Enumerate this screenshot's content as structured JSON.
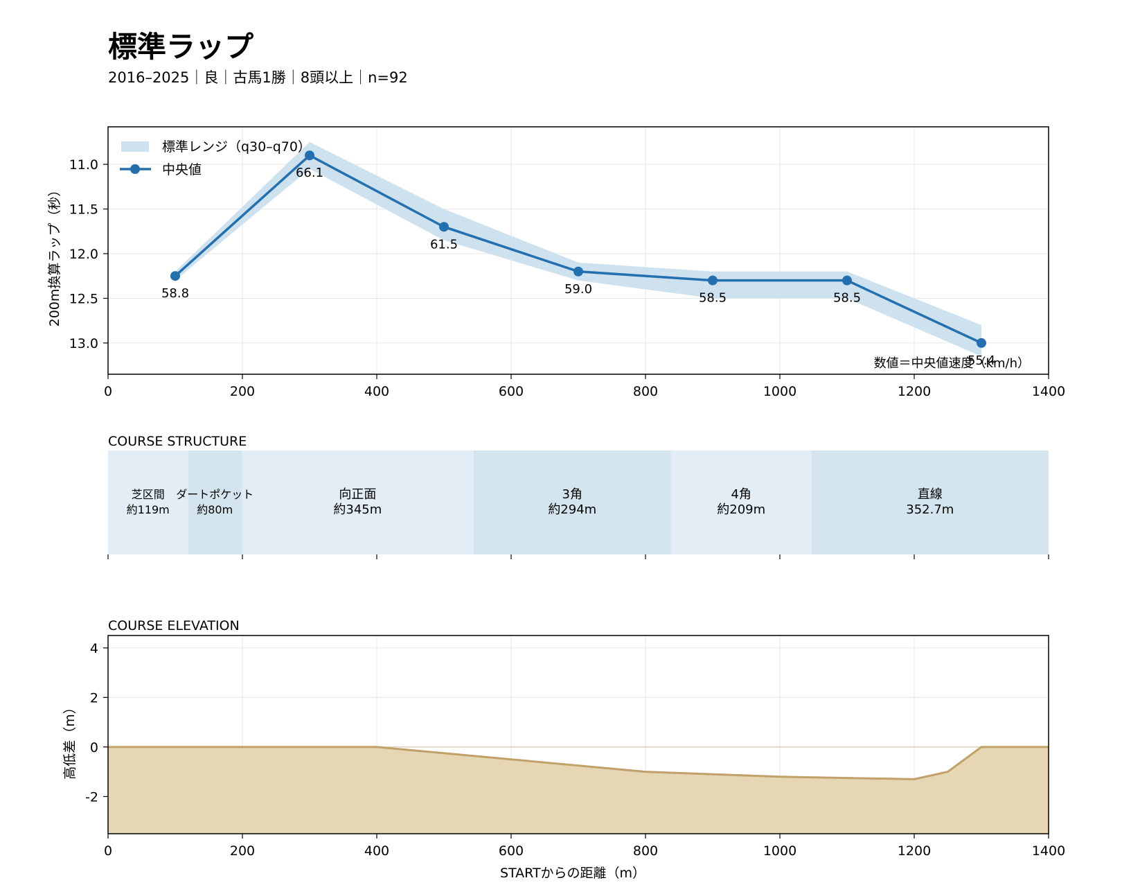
{
  "header": {
    "title": "標準ラップ",
    "subtitle": "2016–2025｜良｜古馬1勝｜8頭以上｜n=92"
  },
  "chart_data": [
    {
      "type": "line",
      "ylabel": "200m換算ラップ（秒）",
      "xlim": [
        0,
        1400
      ],
      "ylim": [
        13.35,
        10.58
      ],
      "y_inverted": true,
      "x_ticks": [
        0,
        200,
        400,
        600,
        800,
        1000,
        1200,
        1400
      ],
      "y_ticks": [
        11.0,
        11.5,
        12.0,
        12.5,
        13.0
      ],
      "y_tick_labels": [
        "11.0",
        "11.5",
        "12.0",
        "12.5",
        "13.0"
      ],
      "grid": true,
      "legend_position": "top-left",
      "legend": {
        "band": "標準レンジ（q30–q70）",
        "median": "中央値"
      },
      "note": "数値＝中央値速度（km/h）",
      "x": [
        100,
        300,
        500,
        700,
        900,
        1100,
        1300
      ],
      "series": [
        {
          "name": "中央値",
          "values": [
            12.25,
            10.9,
            11.7,
            12.2,
            12.3,
            12.3,
            13.0
          ],
          "color": "#2470ae"
        }
      ],
      "band": {
        "name": "標準レンジ（q30–q70）",
        "lower": [
          12.2,
          10.75,
          11.5,
          12.1,
          12.2,
          12.2,
          12.8
        ],
        "upper": [
          12.3,
          11.05,
          11.85,
          12.3,
          12.5,
          12.5,
          13.15
        ],
        "color": "#cde1ef"
      },
      "point_labels": [
        "58.8",
        "66.1",
        "61.5",
        "59.0",
        "58.5",
        "58.5",
        "55.4"
      ]
    },
    {
      "type": "segments",
      "title": "COURSE STRUCTURE",
      "xlim": [
        0,
        1400
      ],
      "segments": [
        {
          "start": 0,
          "end": 119,
          "name": "芝区間",
          "length": "約119m",
          "color": "#e2edf5"
        },
        {
          "start": 119,
          "end": 199,
          "name": "ダートポケット",
          "length": "約80m",
          "color": "#d4e5f0"
        },
        {
          "start": 199,
          "end": 544,
          "name": "向正面",
          "length": "約345m",
          "color": "#e2edf5"
        },
        {
          "start": 544,
          "end": 838,
          "name": "3角",
          "length": "約294m",
          "color": "#d4e5f0"
        },
        {
          "start": 838,
          "end": 1047,
          "name": "4角",
          "length": "約209m",
          "color": "#e2edf5"
        },
        {
          "start": 1047,
          "end": 1400,
          "name": "直線",
          "length": "352.7m",
          "color": "#d4e5f0"
        }
      ]
    },
    {
      "type": "area",
      "title": "COURSE ELEVATION",
      "xlabel": "STARTからの距離（m）",
      "ylabel": "高低差（m）",
      "xlim": [
        0,
        1400
      ],
      "ylim": [
        -3.5,
        4.5
      ],
      "x_ticks": [
        0,
        200,
        400,
        600,
        800,
        1000,
        1200,
        1400
      ],
      "y_ticks": [
        4,
        2,
        0,
        -2
      ],
      "grid": true,
      "x": [
        0,
        400,
        600,
        800,
        1000,
        1200,
        1250,
        1300,
        1400
      ],
      "values": [
        0,
        0,
        -0.5,
        -1.0,
        -1.2,
        -1.3,
        -1.0,
        0,
        0
      ],
      "line_color": "#c2a06a",
      "fill_color": "#e6d6b4"
    }
  ]
}
